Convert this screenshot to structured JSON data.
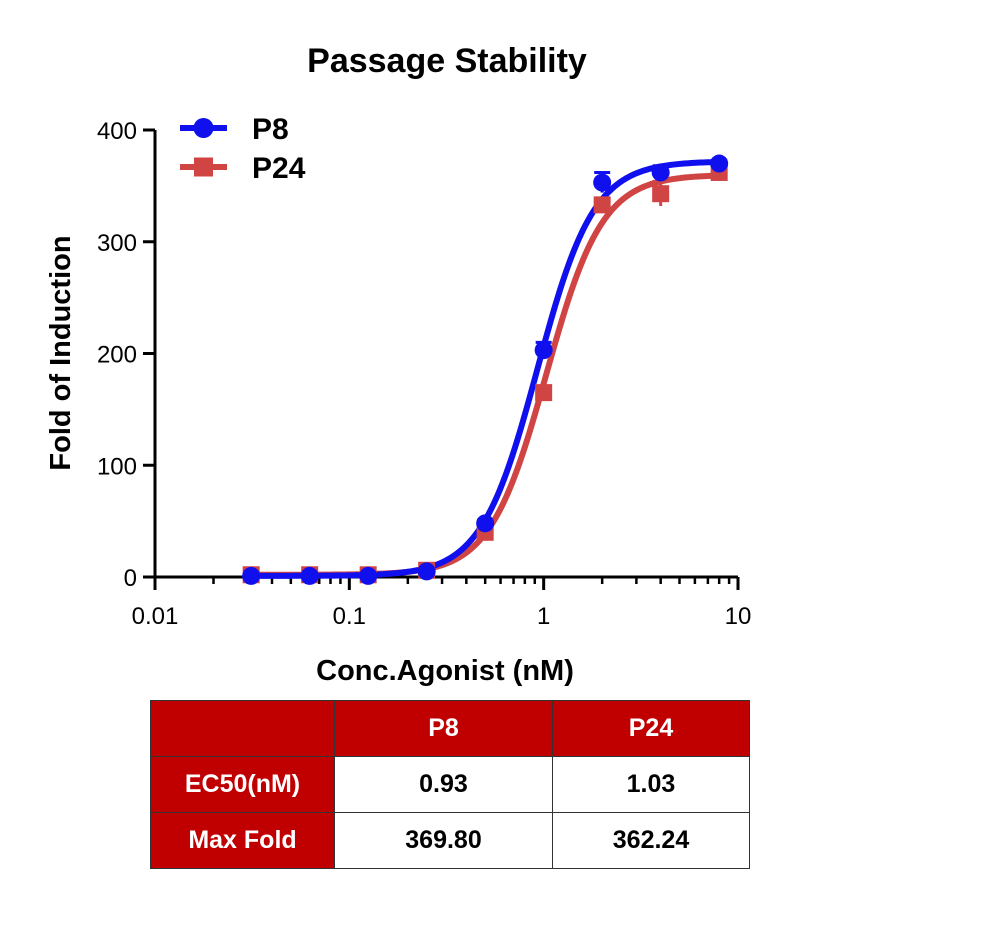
{
  "chart_data": {
    "type": "scatter",
    "title": "Passage Stability",
    "xlabel": "Conc.Agonist (nM)",
    "ylabel": "Fold of Induction",
    "x_scale": "log",
    "xlim": [
      0.01,
      10
    ],
    "ylim": [
      0,
      400
    ],
    "x_ticks": [
      0.01,
      0.1,
      1,
      10
    ],
    "x_tick_labels": [
      "0.01",
      "0.1",
      "1",
      "10"
    ],
    "y_ticks": [
      0,
      100,
      200,
      300,
      400
    ],
    "y_tick_labels": [
      "0",
      "100",
      "200",
      "300",
      "400"
    ],
    "legend_position": "top-left",
    "grid": false,
    "series": [
      {
        "name": "P8",
        "color": "#1010ee",
        "marker": "circle",
        "x": [
          0.03125,
          0.0625,
          0.125,
          0.25,
          0.5,
          1,
          2,
          4,
          8
        ],
        "y": [
          1,
          1,
          1,
          5,
          48,
          203,
          353,
          362,
          370
        ],
        "error": [
          2,
          2,
          2,
          2,
          3,
          7,
          9,
          6,
          3
        ],
        "fit": {
          "bottom": 1,
          "top": 372,
          "ec50": 0.93,
          "hill": 3.0
        }
      },
      {
        "name": "P24",
        "color": "#d04444",
        "marker": "square",
        "x": [
          0.03125,
          0.0625,
          0.125,
          0.25,
          0.5,
          1,
          2,
          4,
          8
        ],
        "y": [
          2,
          2,
          2,
          6,
          40,
          165,
          333,
          343,
          362
        ],
        "error": [
          2,
          2,
          2,
          2,
          3,
          5,
          6,
          11,
          4
        ],
        "fit": {
          "bottom": 2,
          "top": 360,
          "ec50": 1.03,
          "hill": 3.0
        }
      }
    ]
  },
  "table": {
    "header": [
      "",
      "P8",
      "P24"
    ],
    "rows": [
      {
        "label": "EC50(nM)",
        "values": [
          "0.93",
          "1.03"
        ]
      },
      {
        "label": "Max Fold",
        "values": [
          "369.80",
          "362.24"
        ]
      }
    ]
  }
}
